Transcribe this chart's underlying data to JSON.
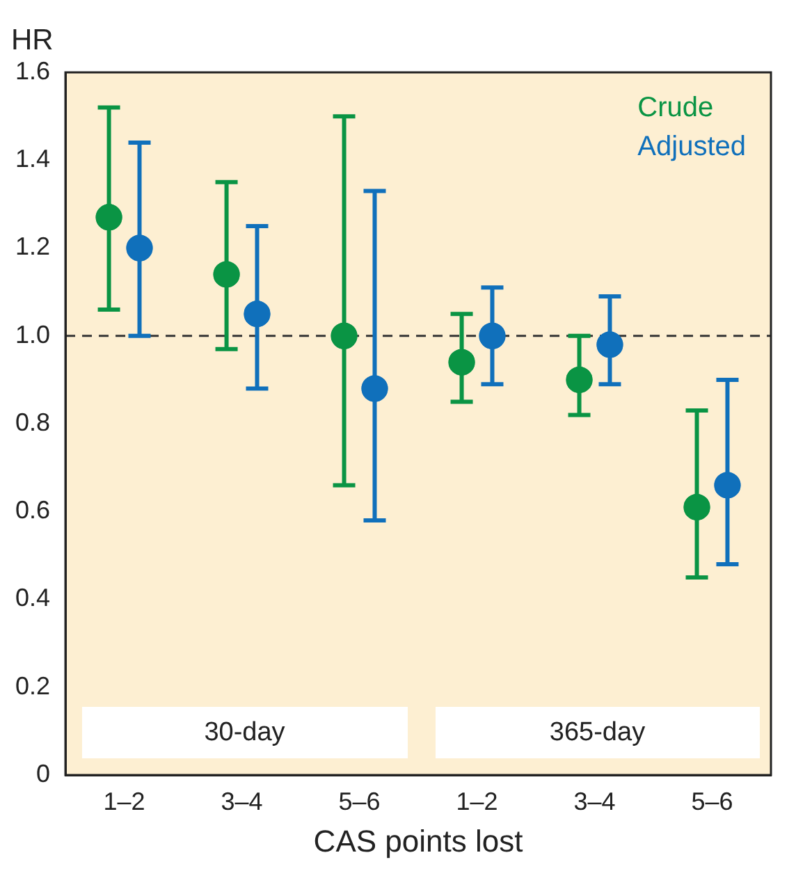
{
  "chart_data": {
    "type": "scatter",
    "ylabel": "HR",
    "xlabel": "CAS points lost",
    "categories": [
      "1–2",
      "3–4",
      "5–6",
      "1–2",
      "3–4",
      "5–6"
    ],
    "series": [
      {
        "name": "Crude",
        "color": "#0a9444",
        "values": [
          1.27,
          1.14,
          1.0,
          0.94,
          0.9,
          0.61
        ],
        "errors": [
          [
            1.06,
            1.52
          ],
          [
            0.97,
            1.35
          ],
          [
            0.66,
            1.5
          ],
          [
            0.85,
            1.05
          ],
          [
            0.82,
            1.0
          ],
          [
            0.45,
            0.83
          ]
        ]
      },
      {
        "name": "Adjusted",
        "color": "#1070bb",
        "values": [
          1.2,
          1.05,
          0.88,
          1.0,
          0.98,
          0.66
        ],
        "errors": [
          [
            1.0,
            1.44
          ],
          [
            0.88,
            1.25
          ],
          [
            0.58,
            1.33
          ],
          [
            0.89,
            1.11
          ],
          [
            0.89,
            1.09
          ],
          [
            0.48,
            0.9
          ]
        ]
      }
    ],
    "ylim": [
      0,
      1.6
    ],
    "yticks": [
      0,
      0.2,
      0.4,
      0.6,
      0.8,
      {
        "value": 1,
        "label": "1.0"
      },
      1.2,
      1.4,
      1.6
    ],
    "ref_lines": [
      {
        "axis": "y",
        "value": 1.0,
        "color": "#333333",
        "line_style": "dashed"
      }
    ],
    "annotations": [
      "30-day",
      "365-day"
    ],
    "legend": "top right",
    "marker": "circle",
    "grid": false
  }
}
